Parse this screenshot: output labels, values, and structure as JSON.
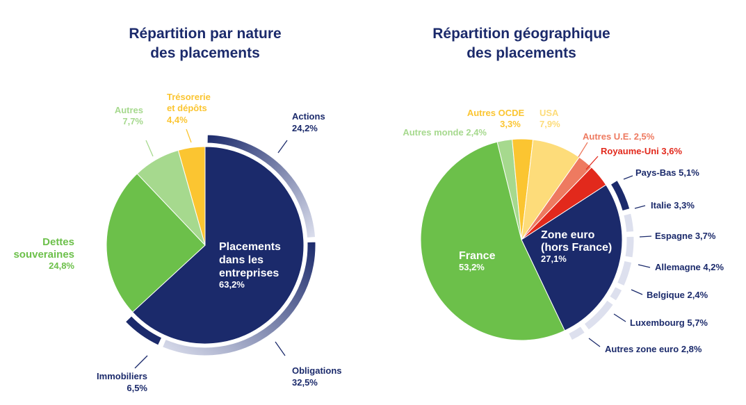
{
  "colors": {
    "navy": "#1b2a6b",
    "green": "#6cc04a",
    "light_green": "#a6d98e",
    "yellow": "#fbc531",
    "light_yellow": "#fddc7a",
    "salmon": "#ee7a60",
    "red": "#e2291c",
    "ring_light": "#dde0ee"
  },
  "chart_data": [
    {
      "type": "pie",
      "title": [
        "Répartition par nature",
        "des placements"
      ],
      "slices": [
        {
          "label": "Placements dans les entreprises",
          "value": 63.2,
          "color": "#1b2a6b"
        },
        {
          "label": "Dettes souveraines",
          "value": 24.8,
          "color": "#6cc04a"
        },
        {
          "label": "Autres",
          "value": 7.7,
          "color": "#a6d98e"
        },
        {
          "label": "Trésorerie et dépôts",
          "value": 4.4,
          "color": "#fbc531"
        }
      ],
      "breakdown": [
        {
          "label": "Actions",
          "value": 24.2
        },
        {
          "label": "Obligations",
          "value": 32.5
        },
        {
          "label": "Immobiliers",
          "value": 6.5
        }
      ],
      "labels": {
        "center": [
          "Placements",
          "dans les",
          "entreprises"
        ],
        "center_value": "63,2%",
        "dettes": [
          "Dettes",
          "souveraines"
        ],
        "dettes_value": "24,8%",
        "autres": "Autres",
        "autres_value": "7,7%",
        "tresorerie": [
          "Trésorerie",
          "et dépôts"
        ],
        "tresorerie_value": "4,4%",
        "actions": "Actions",
        "actions_value": "24,2%",
        "obligations": "Obligations",
        "obligations_value": "32,5%",
        "immobiliers": "Immobiliers",
        "immobiliers_value": "6,5%"
      }
    },
    {
      "type": "pie",
      "title": [
        "Répartition géographique",
        "des placements"
      ],
      "slices": [
        {
          "label": "Zone euro (hors France)",
          "value": 27.1,
          "color": "#1b2a6b"
        },
        {
          "label": "France",
          "value": 53.2,
          "color": "#6cc04a"
        },
        {
          "label": "Autres monde",
          "value": 2.4,
          "color": "#a6d98e"
        },
        {
          "label": "Autres OCDE",
          "value": 3.3,
          "color": "#fbc531"
        },
        {
          "label": "USA",
          "value": 7.9,
          "color": "#fddc7a"
        },
        {
          "label": "Autres U.E.",
          "value": 2.5,
          "color": "#ee7a60"
        },
        {
          "label": "Royaume-Uni",
          "value": 3.6,
          "color": "#e2291c"
        }
      ],
      "breakdown": [
        {
          "label": "Pays-Bas",
          "value": 5.1
        },
        {
          "label": "Italie",
          "value": 3.3
        },
        {
          "label": "Espagne",
          "value": 3.7
        },
        {
          "label": "Allemagne",
          "value": 4.2
        },
        {
          "label": "Belgique",
          "value": 2.4
        },
        {
          "label": "Luxembourg",
          "value": 5.7
        },
        {
          "label": "Autres zone euro",
          "value": 2.8
        }
      ],
      "labels": {
        "zone_euro": [
          "Zone euro",
          "(hors France)"
        ],
        "zone_euro_value": "27,1%",
        "france": "France",
        "france_value": "53,2%",
        "autres_monde": "Autres monde",
        "autres_monde_value": "2,4%",
        "autres_ocde": "Autres OCDE",
        "autres_ocde_value": "3,3%",
        "usa": "USA",
        "usa_value": "7,9%",
        "autres_ue": "Autres U.E.",
        "autres_ue_value": "2,5%",
        "royaume_uni": "Royaume-Uni",
        "royaume_uni_value": "3,6%",
        "pays_bas": "Pays-Bas",
        "pays_bas_value": "5,1%",
        "italie": "Italie",
        "italie_value": "3,3%",
        "espagne": "Espagne",
        "espagne_value": "3,7%",
        "allemagne": "Allemagne",
        "allemagne_value": "4,2%",
        "belgique": "Belgique",
        "belgique_value": "2,4%",
        "luxembourg": "Luxembourg",
        "luxembourg_value": "5,7%",
        "autres_zone_euro": "Autres zone euro",
        "autres_zone_euro_value": "2,8%"
      }
    }
  ]
}
